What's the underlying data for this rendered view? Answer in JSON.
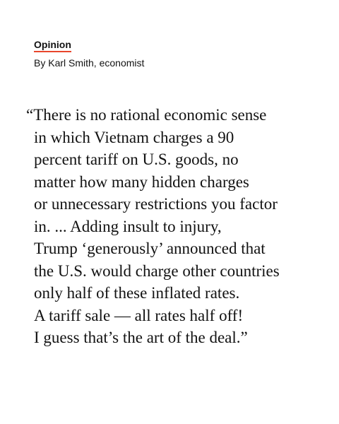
{
  "header": {
    "section": "Opinion",
    "byline": "By Karl Smith, economist"
  },
  "quote": {
    "lines": [
      "“There is no rational economic sense",
      "in which Vietnam charges a 90",
      "percent tariff on U.S. goods, no",
      "matter how many hidden charges",
      "or unnecessary restrictions you factor",
      "in. ... Adding insult to injury,",
      "Trump ‘generously’ announced that",
      "the U.S. would charge other countries",
      "only half of these inflated rates.",
      "A tariff sale — all rates half off!",
      "I guess that’s the art of the deal.”"
    ]
  },
  "colors": {
    "accent_underline": "#e8462c",
    "text": "#121212",
    "background": "#ffffff"
  }
}
